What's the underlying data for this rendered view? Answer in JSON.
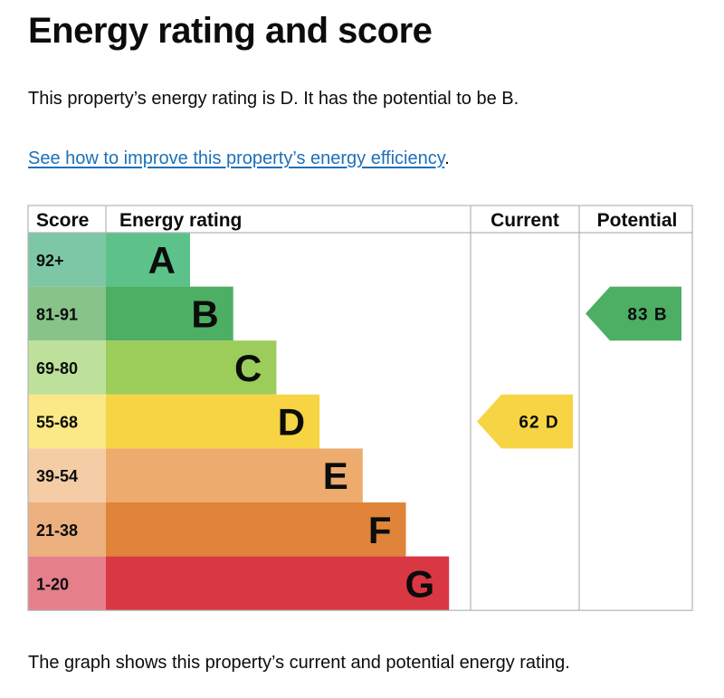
{
  "page": {
    "title": "Energy rating and score",
    "summary": "This property’s energy rating is D. It has the potential to be B.",
    "link_text": "See how to improve this property’s energy efficiency",
    "link_suffix": ".",
    "footer": "The graph shows this property’s current and potential energy rating."
  },
  "chart_data": {
    "type": "bar",
    "headers": {
      "score": "Score",
      "rating": "Energy rating",
      "current": "Current",
      "potential": "Potential"
    },
    "bands": [
      {
        "letter": "A",
        "range": "92+",
        "color": "#5cc28a",
        "score_bg": "#7dc7a6"
      },
      {
        "letter": "B",
        "range": "81-91",
        "color": "#4caf63",
        "score_bg": "#88c38a"
      },
      {
        "letter": "C",
        "range": "69-80",
        "color": "#9ccd5a",
        "score_bg": "#bde09a"
      },
      {
        "letter": "D",
        "range": "55-68",
        "color": "#f7d443",
        "score_bg": "#fbe887"
      },
      {
        "letter": "E",
        "range": "39-54",
        "color": "#edab6e",
        "score_bg": "#f4cda7"
      },
      {
        "letter": "F",
        "range": "21-38",
        "color": "#df8438",
        "score_bg": "#ecb07f"
      },
      {
        "letter": "G",
        "range": "1-20",
        "color": "#d83743",
        "score_bg": "#e5808b"
      }
    ],
    "current": {
      "score": 62,
      "band": "D",
      "label": "62 D",
      "color": "#f7d443"
    },
    "potential": {
      "score": 83,
      "band": "B",
      "label": "83 B",
      "color": "#4caf63"
    }
  }
}
